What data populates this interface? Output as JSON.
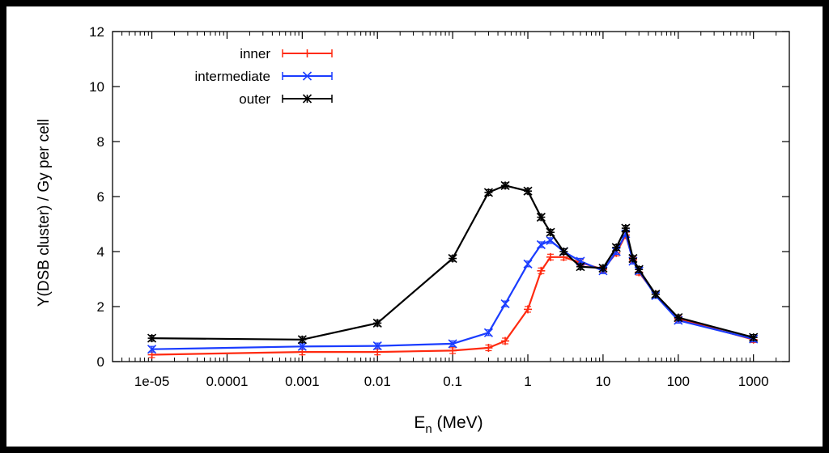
{
  "chart_data": {
    "type": "line",
    "xscale": "log",
    "xlabel_main": "E",
    "xlabel_sub": "n",
    "xlabel_unit": " (MeV)",
    "ylabel": "Y(DSB cluster) / Gy per cell",
    "xlim": [
      3e-06,
      3000
    ],
    "ylim": [
      0,
      12
    ],
    "xticks": [
      1e-05,
      0.0001,
      0.001,
      0.01,
      0.1,
      1,
      10,
      100,
      1000
    ],
    "xtick_labels": [
      "1e-05",
      "0.0001",
      "0.001",
      "0.01",
      "0.1",
      "1",
      "10",
      "100",
      "1000"
    ],
    "yticks": [
      0,
      2,
      4,
      6,
      8,
      10,
      12
    ],
    "ytick_labels": [
      "0",
      "2",
      "4",
      "6",
      "8",
      "10",
      "12"
    ],
    "legend_position": "top-left",
    "grid": false,
    "series": [
      {
        "name": "inner",
        "color": "#ff2a10",
        "marker": "plus",
        "x": [
          1e-05,
          0.001,
          0.01,
          0.1,
          0.3,
          0.5,
          1,
          1.5,
          2,
          3,
          5,
          10,
          15,
          20,
          25,
          30,
          50,
          100,
          1000
        ],
        "y": [
          0.25,
          0.35,
          0.35,
          0.4,
          0.5,
          0.75,
          1.9,
          3.3,
          3.8,
          3.8,
          3.6,
          3.35,
          3.95,
          4.6,
          3.7,
          3.25,
          2.45,
          1.55,
          0.8
        ]
      },
      {
        "name": "intermediate",
        "color": "#1a3cff",
        "marker": "x",
        "x": [
          1e-05,
          0.001,
          0.01,
          0.1,
          0.3,
          0.5,
          1,
          1.5,
          2,
          3,
          5,
          10,
          15,
          20,
          25,
          30,
          50,
          100,
          1000
        ],
        "y": [
          0.45,
          0.55,
          0.57,
          0.65,
          1.05,
          2.1,
          3.55,
          4.25,
          4.4,
          4.0,
          3.65,
          3.3,
          4.0,
          4.65,
          3.65,
          3.3,
          2.4,
          1.5,
          0.82
        ]
      },
      {
        "name": "outer",
        "color": "#000000",
        "marker": "star",
        "x": [
          1e-05,
          0.001,
          0.01,
          0.1,
          0.3,
          0.5,
          1,
          1.5,
          2,
          3,
          5,
          10,
          15,
          20,
          25,
          30,
          50,
          100,
          1000
        ],
        "y": [
          0.85,
          0.8,
          1.4,
          3.75,
          6.15,
          6.4,
          6.2,
          5.25,
          4.7,
          4.0,
          3.45,
          3.4,
          4.15,
          4.85,
          3.75,
          3.35,
          2.45,
          1.6,
          0.88
        ]
      }
    ]
  }
}
